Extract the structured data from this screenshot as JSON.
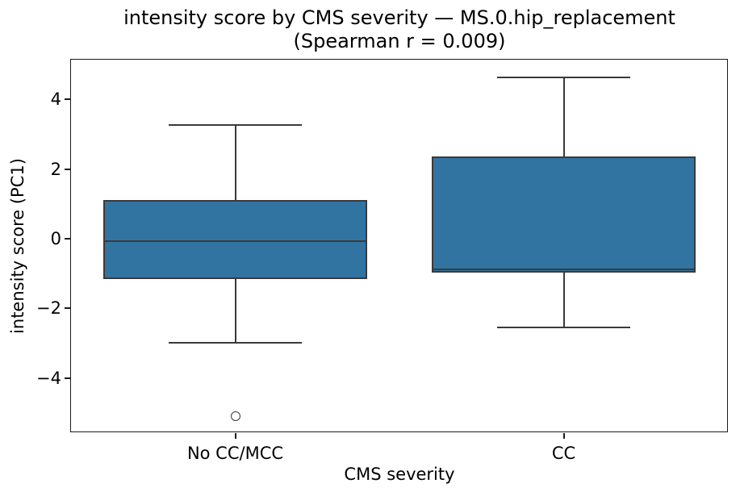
{
  "chart_data": {
    "type": "boxplot",
    "title": "intensity score by CMS severity — MS.0.hip_replacement",
    "subtitle": "(Spearman r = 0.009)",
    "xlabel": "CMS severity",
    "ylabel": "intensity score (PC1)",
    "categories": [
      "No CC/MCC",
      "CC"
    ],
    "yticks": [
      4,
      2,
      0,
      -2,
      -4
    ],
    "ylim": [
      -5.56,
      5.14
    ],
    "grid": false,
    "boxes": [
      {
        "category": "No CC/MCC",
        "whisker_low": -3.0,
        "q1": -1.17,
        "median": -0.08,
        "q3": 1.1,
        "whisker_high": 3.27,
        "outliers": [
          -5.1
        ]
      },
      {
        "category": "CC",
        "whisker_low": -2.55,
        "q1": -0.97,
        "median": -0.88,
        "q3": 2.35,
        "whisker_high": 4.62,
        "outliers": []
      }
    ],
    "colors": {
      "box_fill": "#3274a1",
      "box_edge": "#3a3a3a",
      "spine": "#1a1a1a",
      "text": "#000000",
      "background": "#ffffff"
    }
  }
}
